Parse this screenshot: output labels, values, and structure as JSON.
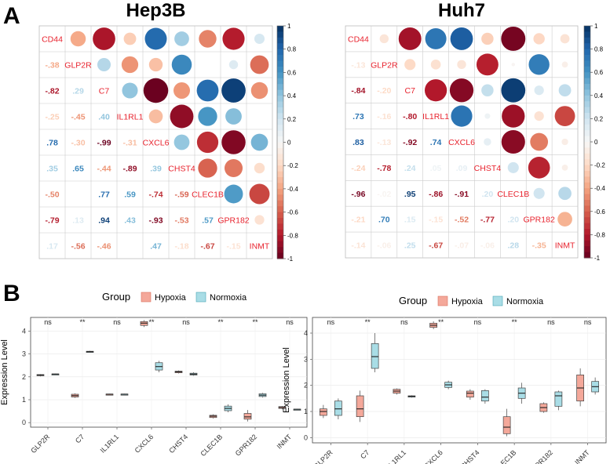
{
  "panelA": {
    "letter": "A"
  },
  "panelB": {
    "letter": "B"
  },
  "colorbar_ticks": [
    "1",
    "0.8",
    "0.6",
    "0.4",
    "0.2",
    "0",
    "-0.2",
    "-0.4",
    "-0.6",
    "-0.8",
    "-1"
  ],
  "chart_data": [
    {
      "type": "heatmap",
      "title": "Hep3B",
      "subtype": "correlation-matrix",
      "variables": [
        "CD44",
        "GLP2R",
        "C7",
        "IL1RL1",
        "CXCL6",
        "CHST4",
        "CLEC1B",
        "GPR182",
        "INMT"
      ],
      "matrix": [
        [
          1,
          -0.38,
          -0.82,
          -0.25,
          0.78,
          0.35,
          -0.5,
          -0.79,
          0.17
        ],
        [
          -0.38,
          1,
          0.29,
          -0.45,
          -0.3,
          0.65,
          0,
          0.13,
          -0.56
        ],
        [
          -0.82,
          0.29,
          1,
          0.4,
          -0.99,
          -0.44,
          0.77,
          0.94,
          -0.46
        ],
        [
          -0.25,
          -0.45,
          0.4,
          1,
          -0.31,
          -0.89,
          0.59,
          0.43,
          0
        ],
        [
          0.78,
          -0.3,
          -0.99,
          -0.31,
          1,
          0.39,
          -0.74,
          -0.93,
          0.47
        ],
        [
          0.35,
          0.65,
          -0.44,
          -0.89,
          0.39,
          1,
          -0.59,
          -0.53,
          -0.18
        ],
        [
          -0.5,
          0,
          0.77,
          0.59,
          -0.74,
          -0.59,
          1,
          0.57,
          -0.67
        ],
        [
          -0.79,
          0.13,
          0.94,
          0.43,
          -0.93,
          -0.53,
          0.57,
          1,
          -0.15
        ],
        [
          0.17,
          -0.56,
          -0.46,
          0,
          0.47,
          -0.18,
          -0.67,
          -0.15,
          1
        ]
      ],
      "upper": "circles",
      "lower": "numbers",
      "color_range": [
        -1,
        1
      ]
    },
    {
      "type": "heatmap",
      "title": "Huh7",
      "subtype": "correlation-matrix",
      "variables": [
        "CD44",
        "GLP2R",
        "C7",
        "IL1RL1",
        "CXCL6",
        "CHST4",
        "CLEC1B",
        "GPR182",
        "INMT"
      ],
      "matrix": [
        [
          1,
          -0.13,
          -0.84,
          0.73,
          0.83,
          -0.24,
          -0.96,
          -0.21,
          -0.14
        ],
        [
          -0.13,
          1,
          -0.2,
          -0.16,
          -0.13,
          -0.78,
          -0.02,
          0.7,
          -0.06
        ],
        [
          -0.84,
          -0.2,
          1,
          -0.8,
          -0.92,
          0.24,
          0.95,
          0.15,
          0.25
        ],
        [
          0.73,
          -0.16,
          -0.8,
          1,
          0.74,
          0.05,
          -0.86,
          -0.15,
          -0.67
        ],
        [
          0.83,
          -0.13,
          -0.92,
          0.74,
          1,
          0.09,
          -0.91,
          -0.52,
          -0.07
        ],
        [
          -0.24,
          -0.78,
          0.24,
          0.05,
          0.09,
          1,
          0.2,
          -0.77,
          -0.06
        ],
        [
          -0.96,
          -0.02,
          0.95,
          -0.86,
          -0.91,
          0.2,
          1,
          0.2,
          0.28
        ],
        [
          -0.21,
          0.7,
          0.15,
          -0.15,
          -0.52,
          -0.77,
          0.2,
          1,
          -0.35
        ],
        [
          -0.14,
          -0.06,
          0.25,
          -0.67,
          -0.07,
          -0.06,
          0.28,
          -0.35,
          1
        ]
      ],
      "upper": "circles",
      "lower": "numbers",
      "color_range": [
        -1,
        1
      ]
    },
    {
      "type": "boxplot",
      "title": "",
      "legend_title": "Group",
      "legend": [
        "Hypoxia",
        "Normoxia"
      ],
      "ylabel": "Expression Level",
      "ylim": [
        -0.2,
        4.6
      ],
      "yticks": [
        0,
        1,
        2,
        3,
        4
      ],
      "categories": [
        "GLP2R",
        "C7",
        "IL1RL1",
        "CXCL6",
        "CHST4",
        "CLEC1B",
        "GPR182",
        "INMT"
      ],
      "significance": [
        "ns",
        "**",
        "ns",
        "**",
        "ns",
        "**",
        "**",
        "ns"
      ],
      "series": [
        {
          "name": "Hypoxia",
          "stats": [
            [
              2.02,
              2.05,
              2.08,
              2.1,
              2.12
            ],
            [
              1.08,
              1.12,
              1.18,
              1.24,
              1.28
            ],
            [
              1.22,
              1.23,
              1.24,
              1.25,
              1.26
            ],
            [
              4.18,
              4.25,
              4.35,
              4.42,
              4.48
            ],
            [
              2.15,
              2.18,
              2.22,
              2.25,
              2.28
            ],
            [
              0.18,
              0.22,
              0.28,
              0.32,
              0.36
            ],
            [
              0.05,
              0.15,
              0.25,
              0.4,
              0.55
            ],
            [
              0.58,
              0.62,
              0.66,
              0.7,
              0.72
            ]
          ]
        },
        {
          "name": "Normoxia",
          "stats": [
            [
              2.09,
              2.1,
              2.12,
              2.13,
              2.14
            ],
            [
              3.07,
              3.08,
              3.1,
              3.12,
              3.14
            ],
            [
              1.22,
              1.23,
              1.24,
              1.25,
              1.26
            ],
            [
              2.2,
              2.3,
              2.45,
              2.62,
              2.7
            ],
            [
              2.05,
              2.08,
              2.12,
              2.16,
              2.2
            ],
            [
              0.45,
              0.52,
              0.62,
              0.72,
              0.8
            ],
            [
              1.1,
              1.14,
              1.2,
              1.26,
              1.3
            ],
            [
              0.56,
              0.57,
              0.58,
              0.59,
              0.6
            ]
          ]
        }
      ]
    },
    {
      "type": "boxplot",
      "title": "",
      "legend_title": "Group",
      "legend": [
        "Hypoxia",
        "Normoxia"
      ],
      "ylabel": "Expression Level",
      "ylim": [
        -0.2,
        4.6
      ],
      "yticks": [
        0,
        1,
        2,
        3,
        4
      ],
      "categories": [
        "GLP2R",
        "C7",
        "IL1RL1",
        "CXCL6",
        "CHST4",
        "CLEC1B",
        "GPR182",
        "INMT"
      ],
      "significance": [
        "ns",
        "**",
        "ns",
        "**",
        "ns",
        "**",
        "ns",
        "ns"
      ],
      "series": [
        {
          "name": "Hypoxia",
          "stats": [
            [
              0.75,
              0.85,
              1.0,
              1.1,
              1.25
            ],
            [
              0.6,
              0.8,
              1.1,
              1.6,
              1.8
            ],
            [
              1.65,
              1.7,
              1.78,
              1.85,
              1.88
            ],
            [
              4.15,
              4.22,
              4.3,
              4.38,
              4.45
            ],
            [
              1.45,
              1.55,
              1.7,
              1.78,
              1.85
            ],
            [
              0.05,
              0.15,
              0.4,
              0.8,
              1.1
            ],
            [
              0.95,
              1.0,
              1.15,
              1.3,
              1.35
            ],
            [
              1.2,
              1.4,
              1.9,
              2.4,
              2.65
            ]
          ]
        },
        {
          "name": "Normoxia",
          "stats": [
            [
              0.7,
              0.85,
              1.1,
              1.4,
              1.5
            ],
            [
              2.5,
              2.65,
              3.1,
              3.6,
              4.0
            ],
            [
              1.53,
              1.55,
              1.58,
              1.6,
              1.62
            ],
            [
              1.85,
              1.92,
              2.02,
              2.12,
              2.18
            ],
            [
              1.3,
              1.4,
              1.55,
              1.8,
              1.85
            ],
            [
              1.3,
              1.5,
              1.7,
              1.9,
              2.1
            ],
            [
              1.05,
              1.2,
              1.6,
              1.75,
              1.8
            ],
            [
              1.65,
              1.75,
              1.95,
              2.15,
              2.3
            ]
          ]
        }
      ]
    }
  ]
}
